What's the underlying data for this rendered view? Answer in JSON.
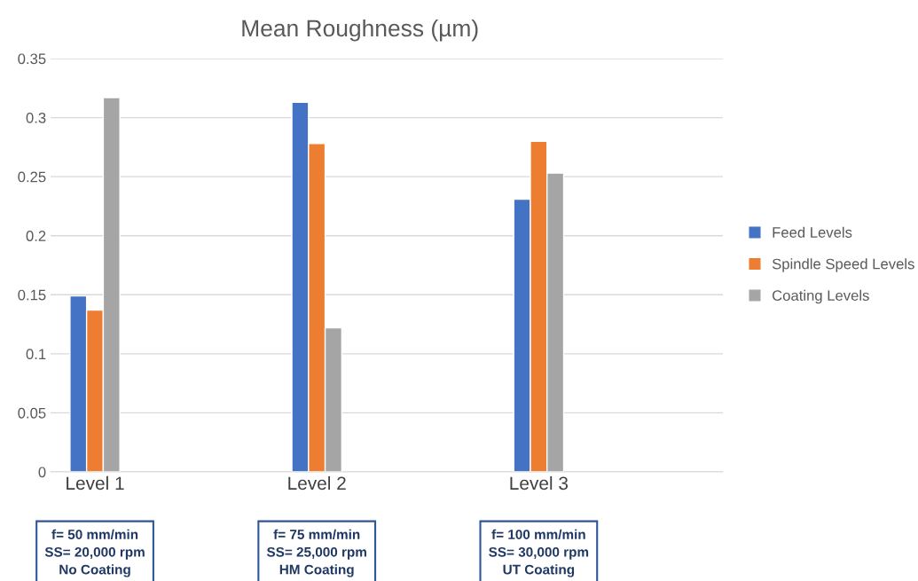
{
  "chart_data": {
    "type": "bar",
    "title": "Mean Roughness (µm)",
    "categories": [
      "Level 1",
      "Level 2",
      "Level 3"
    ],
    "series": [
      {
        "name": "Feed Levels",
        "color": "#4472c4",
        "values": [
          0.149,
          0.313,
          0.231
        ]
      },
      {
        "name": "Spindle Speed Levels",
        "color": "#ed7d31",
        "values": [
          0.137,
          0.278,
          0.28
        ]
      },
      {
        "name": "Coating Levels",
        "color": "#a5a5a5",
        "values": [
          0.317,
          0.122,
          0.253
        ]
      }
    ],
    "ylim": [
      0,
      0.35
    ],
    "yticks": [
      0,
      0.05,
      0.1,
      0.15,
      0.2,
      0.25,
      0.3,
      0.35
    ],
    "grid": "y",
    "legend": "right",
    "annotations": [
      "f= 50 mm/min\nSS= 20,000 rpm\nNo Coating",
      "f= 75 mm/min\nSS= 25,000 rpm\nHM Coating",
      "f= 100 mm/min\nSS= 30,000 rpm\nUT Coating"
    ]
  }
}
